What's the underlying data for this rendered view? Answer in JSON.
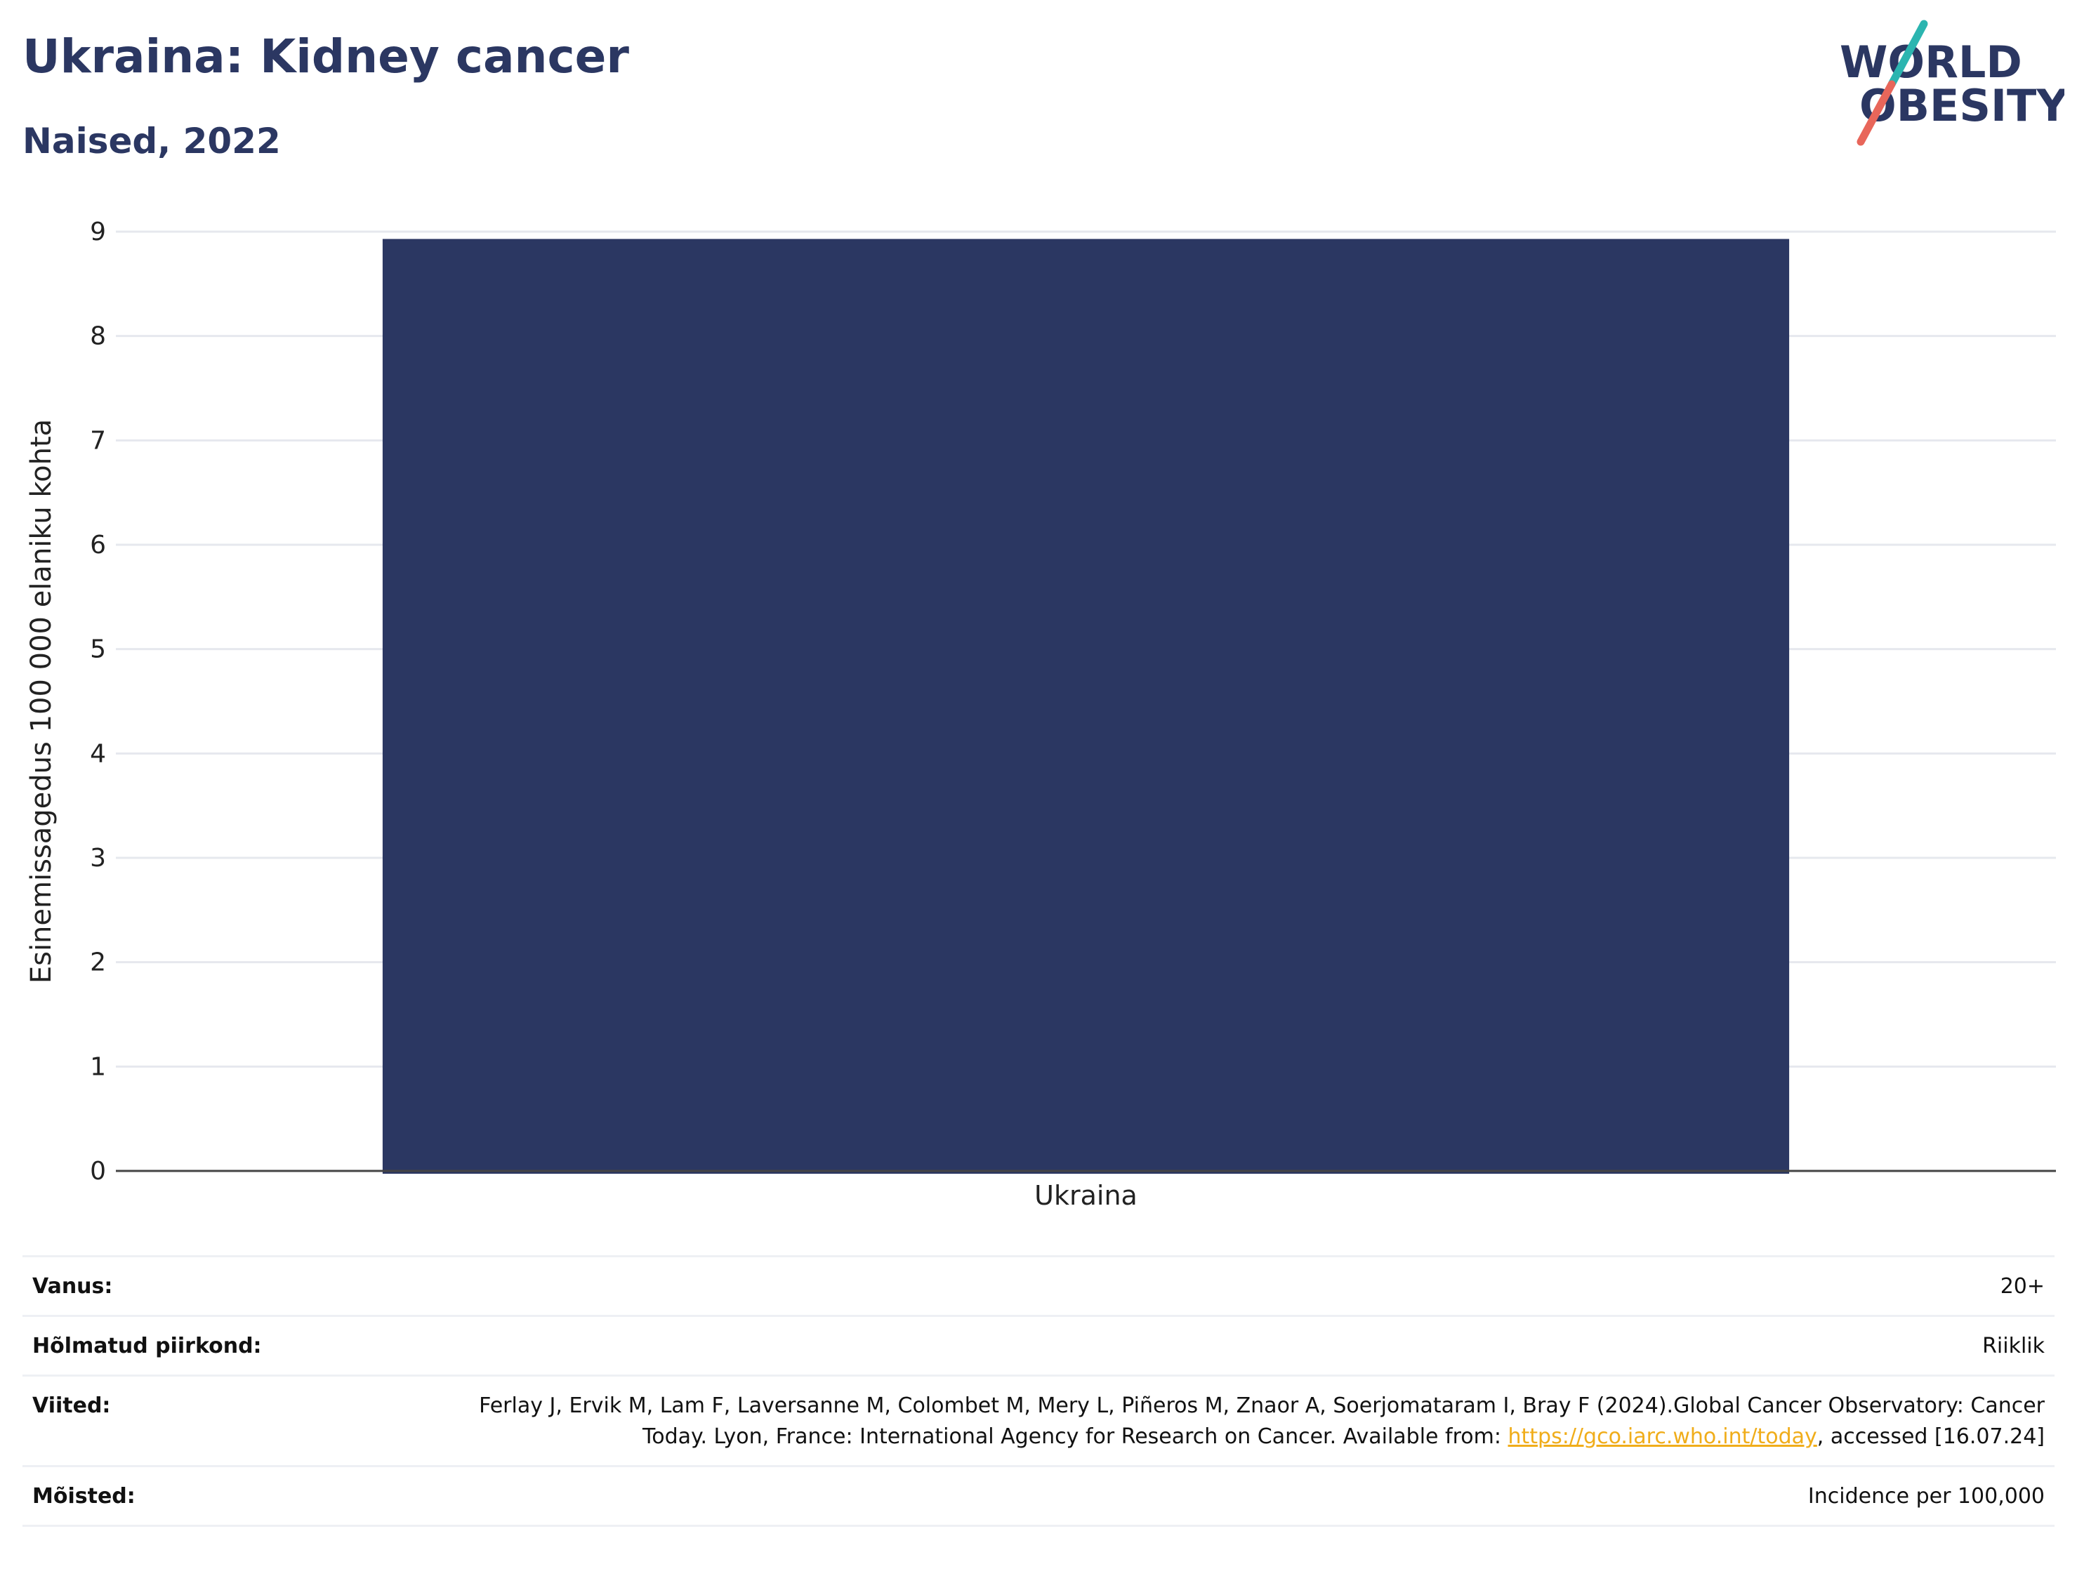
{
  "header": {
    "title": "Ukraina: Kidney cancer",
    "subtitle": "Naised, 2022"
  },
  "logo": {
    "line1": "WORLD",
    "line2": "OBESITY",
    "colors": {
      "text": "#2b3762",
      "slash_top": "#2bb5b0",
      "slash_bottom": "#e8665a"
    }
  },
  "chart_data": {
    "type": "bar",
    "categories": [
      "Ukraina"
    ],
    "values": [
      8.93
    ],
    "ylabel": "Esinemissagedus 100 000 elaniku kohta",
    "xlabel": "",
    "ylim": [
      0,
      9
    ],
    "yticks": [
      0,
      1,
      2,
      3,
      4,
      5,
      6,
      7,
      8,
      9
    ],
    "grid": true,
    "bar_color": "#2b3762"
  },
  "info": {
    "rows": [
      {
        "label": "Vanus:",
        "value": "20+"
      },
      {
        "label": "Hõlmatud piirkond:",
        "value": "Riiklik"
      },
      {
        "label": "Viited:",
        "value_before_link": "Ferlay J, Ervik M, Lam F, Laversanne M, Colombet M, Mery L, Piñeros M, Znaor A, Soerjomataram I, Bray F (2024).Global Cancer Observatory: Cancer Today. Lyon, France: International Agency for Research on Cancer. Available from: ",
        "link": "https://gco.iarc.who.int/today",
        "value_after_link": ", accessed [16.07.24]"
      },
      {
        "label": "Mõisted:",
        "value": "Incidence per 100,000"
      }
    ]
  }
}
